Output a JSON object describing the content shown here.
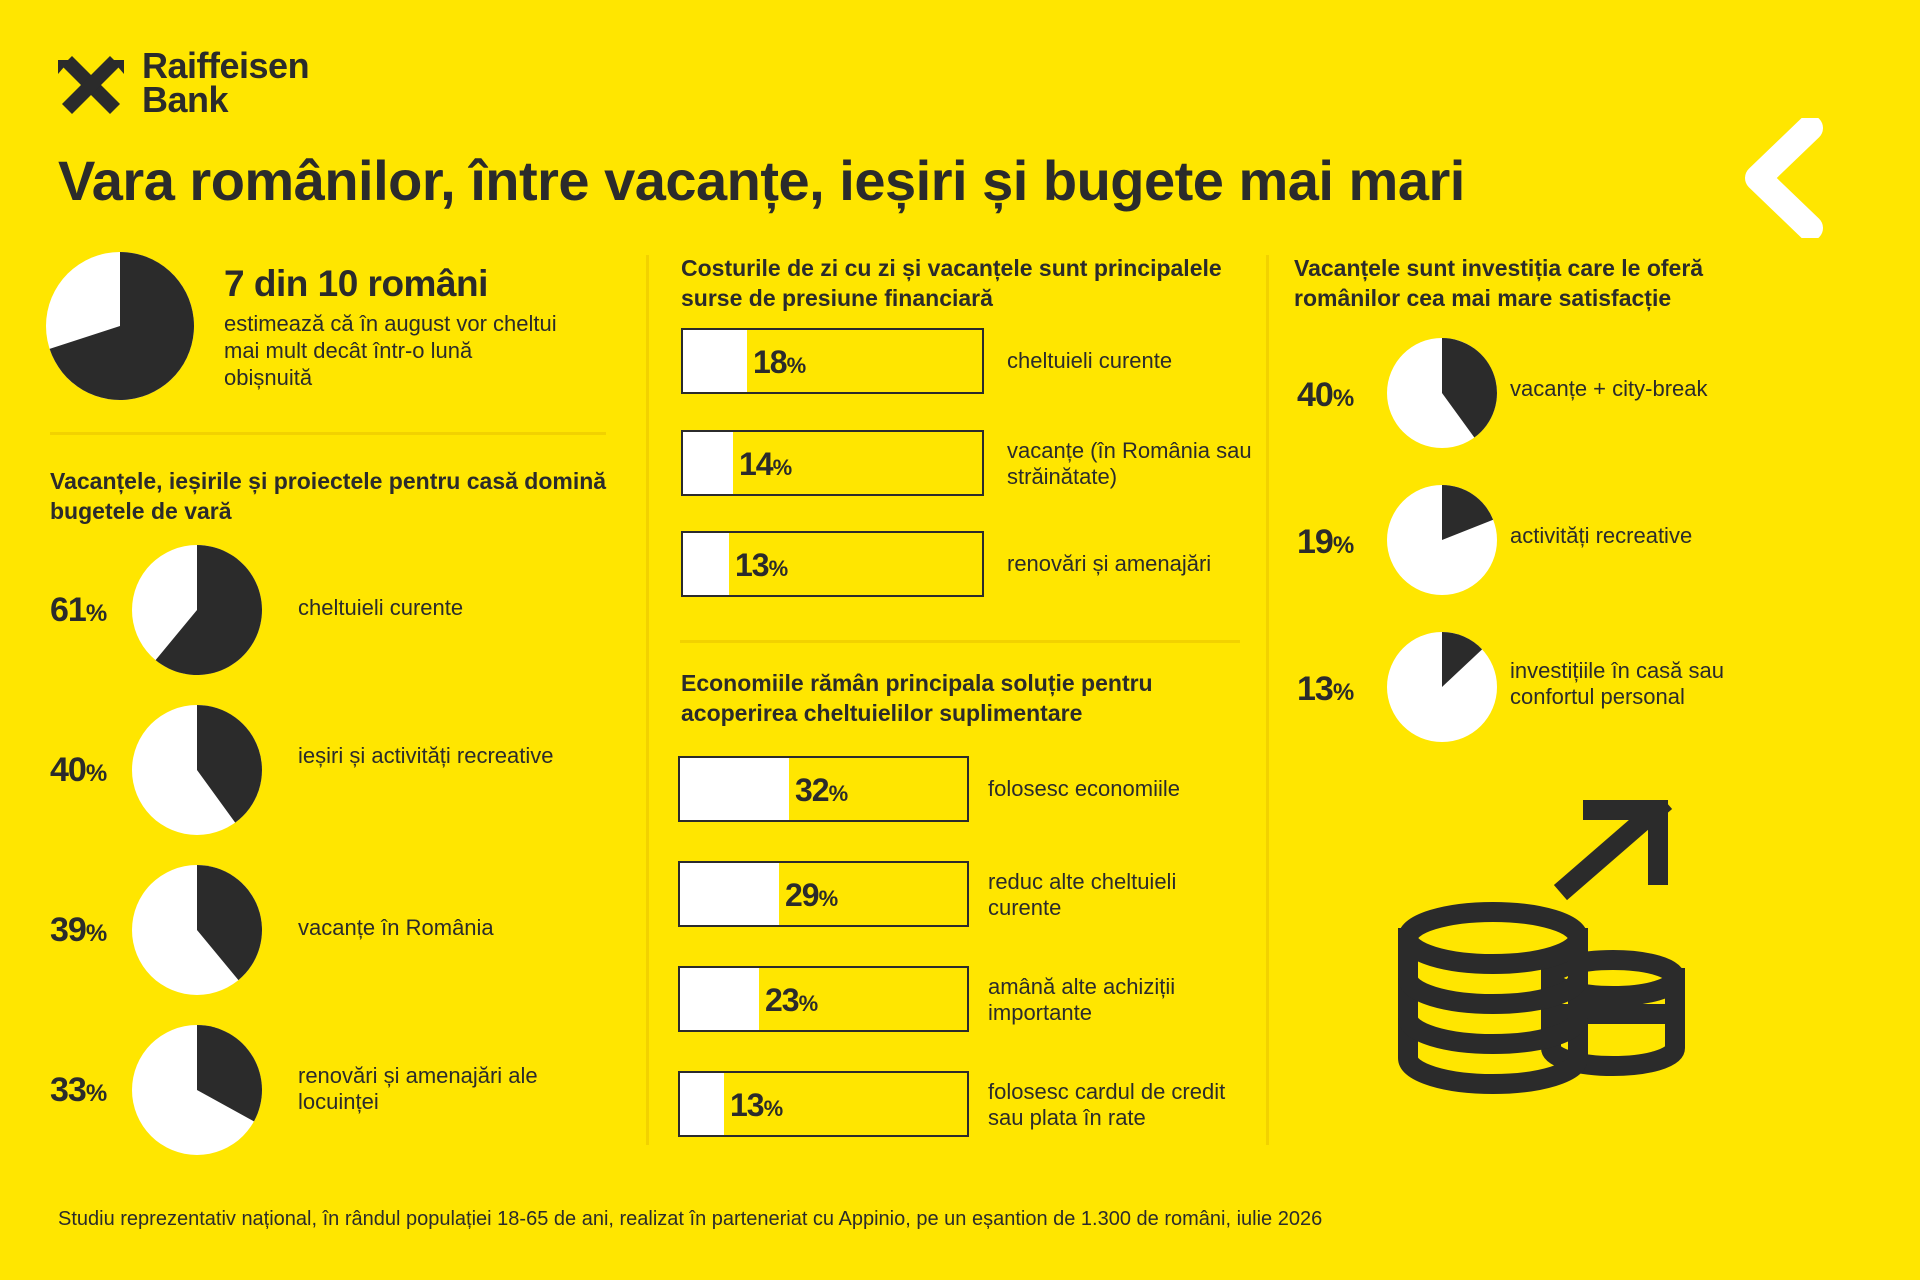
{
  "brand": {
    "line1": "Raiffeisen",
    "line2": "Bank"
  },
  "title": "Vara românilor, între vacanțe, ieșiri și bugete mai mari",
  "colors": {
    "background": "#FFE600",
    "dark": "#2B2B2B",
    "light": "#FFFFFF"
  },
  "icons": {
    "logo": "raiffeisen-crossed-gables-icon",
    "chevron": "chevron-left-icon",
    "coins": "coins-growth-icon"
  },
  "headline": {
    "text": "7 din 10 români",
    "desc": "estimează că în august vor cheltui mai mult decât într-o lună obișnuită"
  },
  "sections": {
    "s1": {
      "title": "Vacanțele, ieșirile și proiectele pentru casă domină bugetele de vară"
    },
    "s2": {
      "title": "Costurile de zi cu zi și vacanțele sunt principalele surse de presiune financiară"
    },
    "s3": {
      "title": "Economiile rămân principala soluție pentru acoperirea cheltuielilor suplimentare"
    },
    "s4": {
      "title": "Vacanțele sunt investiția care le oferă românilor cea mai mare satisfacție"
    }
  },
  "footer": "Studiu reprezentativ național, în rândul populației 18-65 de ani, realizat în parteneriat cu Appinio, pe un eșantion de 1.300 de români, iulie 2026",
  "chart_data": [
    {
      "type": "pie",
      "title": "7 din 10 români",
      "categories": [
        "vor cheltui mai mult",
        "restul"
      ],
      "values": [
        70,
        30
      ]
    },
    {
      "type": "pie",
      "title": "Vacanțele, ieșirile și proiectele pentru casă domină bugetele de vară",
      "categories": [
        "cheltuieli curente",
        "ieșiri și activități recreative",
        "vacanțe în România",
        "renovări și amenajări ale locuinței"
      ],
      "values": [
        61,
        40,
        39,
        33
      ],
      "unit": "%"
    },
    {
      "type": "bar",
      "title": "Costurile de zi cu zi și vacanțele sunt principalele surse de presiune financiară",
      "categories": [
        "cheltuieli curente",
        "vacanțe (în România sau străinătate)",
        "renovări și amenajări"
      ],
      "values": [
        18,
        14,
        13
      ],
      "unit": "%"
    },
    {
      "type": "bar",
      "title": "Economiile rămân principala soluție pentru acoperirea cheltuielilor suplimentare",
      "categories": [
        "folosesc economiile",
        "reduc alte cheltuieli curente",
        "amână alte achiziții importante",
        "folosesc cardul de credit sau plata în rate"
      ],
      "values": [
        32,
        29,
        23,
        13
      ],
      "unit": "%"
    },
    {
      "type": "pie",
      "title": "Vacanțele sunt investiția care le oferă românilor cea mai mare satisfacție",
      "categories": [
        "vacanțe + city-break",
        "activități recreative",
        "investițiile în casă sau confortul personal"
      ],
      "values": [
        40,
        19,
        13
      ],
      "unit": "%"
    }
  ]
}
